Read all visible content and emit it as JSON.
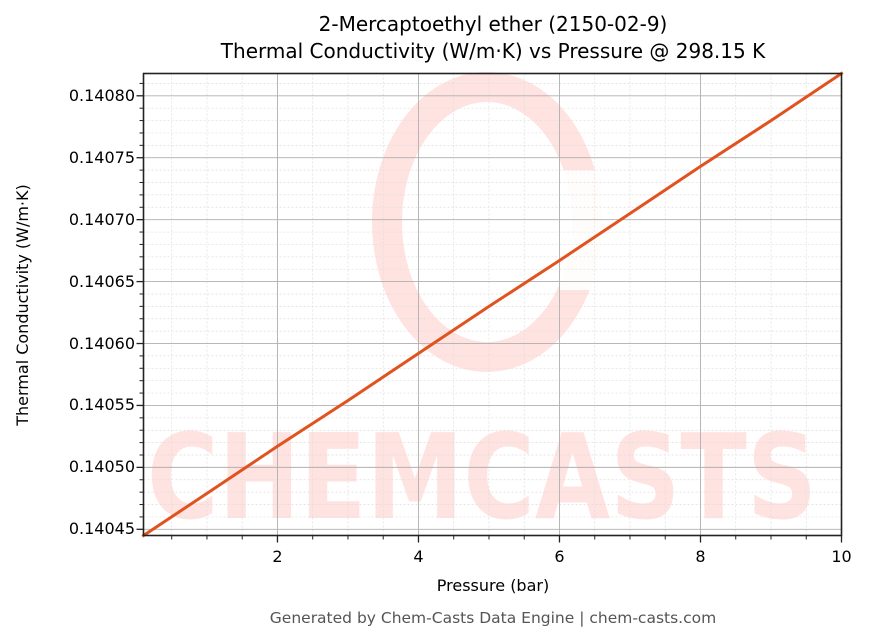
{
  "chart": {
    "title_line1": "2-Mercaptoethyl ether (2150-02-9)",
    "title_line2": "Thermal Conductivity (W/m·K) vs Pressure @ 298.15 K",
    "xlabel": "Pressure (bar)",
    "ylabel": "Thermal Conductivity (W/m·K)",
    "footer": "Generated by Chem-Casts Data Engine | chem-casts.com",
    "watermark": "CHEMCASTS",
    "colors": {
      "line": "#E0531F",
      "watermark": "#FFE3E0",
      "major_grid": "#B0B0B0",
      "minor_grid": "#DDDDDD",
      "footer_text": "#555555"
    },
    "yticks": [
      {
        "label": "0.14080",
        "value": 0.1408
      },
      {
        "label": "0.14075",
        "value": 0.14075
      },
      {
        "label": "0.14070",
        "value": 0.1407
      },
      {
        "label": "0.14065",
        "value": 0.14065
      },
      {
        "label": "0.14060",
        "value": 0.1406
      },
      {
        "label": "0.14055",
        "value": 0.14055
      },
      {
        "label": "0.14050",
        "value": 0.1405
      },
      {
        "label": "0.14045",
        "value": 0.14045
      }
    ],
    "xticks": [
      {
        "label": "2",
        "value": 2
      },
      {
        "label": "4",
        "value": 4
      },
      {
        "label": "6",
        "value": 6
      },
      {
        "label": "8",
        "value": 8
      },
      {
        "label": "10",
        "value": 10
      }
    ]
  },
  "chart_data": {
    "type": "line",
    "title": "2-Mercaptoethyl ether (2150-02-9)\nThermal Conductivity (W/m·K) vs Pressure @ 298.15 K",
    "xlabel": "Pressure (bar)",
    "ylabel": "Thermal Conductivity (W/m·K)",
    "xlim": [
      0.1,
      10
    ],
    "ylim": [
      0.140445,
      0.140818
    ],
    "grid": true,
    "minor_grid": true,
    "legend": null,
    "x_major_ticks": [
      2,
      4,
      6,
      8,
      10
    ],
    "x_minor_step": 0.5,
    "y_major_ticks": [
      0.14045,
      0.1405,
      0.14055,
      0.1406,
      0.14065,
      0.1407,
      0.14075,
      0.1408
    ],
    "y_minor_step": 1e-05,
    "series": [
      {
        "name": "Thermal Conductivity",
        "color": "#E0531F",
        "x": [
          0.1,
          1,
          2,
          3,
          4,
          5,
          6,
          7,
          8,
          9,
          10
        ],
        "y": [
          0.140445,
          0.140479,
          0.140517,
          0.140554,
          0.140592,
          0.14063,
          0.140667,
          0.140705,
          0.140743,
          0.14078,
          0.140818
        ]
      }
    ]
  }
}
